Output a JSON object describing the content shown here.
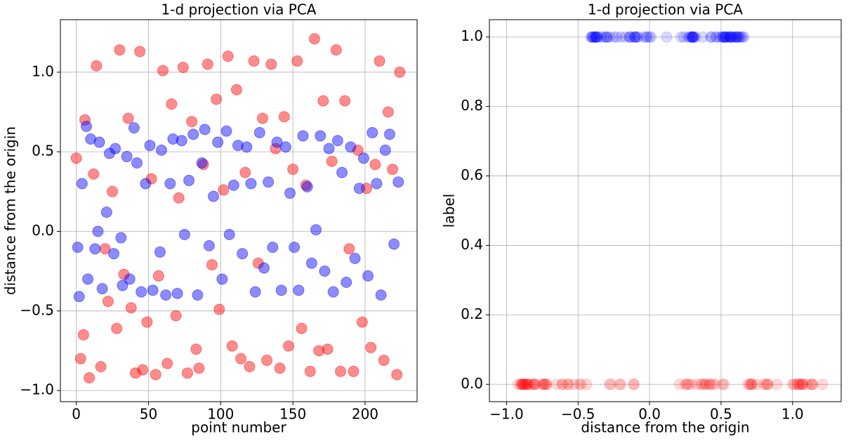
{
  "chart_data": [
    {
      "type": "scatter",
      "title": "1-d projection via PCA",
      "xlabel": "point number",
      "ylabel": "distance from the origin",
      "xlim": [
        -11,
        236
      ],
      "ylim": [
        -1.07,
        1.33
      ],
      "xticks": [
        0,
        50,
        100,
        150,
        200
      ],
      "yticks": [
        {
          "value": -1.0,
          "label": "−1.0"
        },
        {
          "value": -0.5,
          "label": "−0.5"
        },
        {
          "value": 0.0,
          "label": "0.0"
        },
        {
          "value": 0.5,
          "label": "0.5"
        },
        {
          "value": 1.0,
          "label": "1.0"
        }
      ],
      "grid": true,
      "alpha": 0.45,
      "series": [
        {
          "color": "#ff0000",
          "x": [
            0,
            3,
            5,
            6,
            9,
            12,
            14,
            17,
            20,
            22,
            25,
            28,
            30,
            33,
            36,
            38,
            41,
            44,
            46,
            49,
            52,
            55,
            57,
            60,
            63,
            66,
            69,
            71,
            74,
            77,
            80,
            83,
            85,
            88,
            91,
            94,
            97,
            99,
            102,
            105,
            108,
            111,
            114,
            117,
            120,
            123,
            126,
            129,
            132,
            135,
            138,
            141,
            144,
            147,
            150,
            153,
            156,
            159,
            162,
            165,
            168,
            171,
            174,
            177,
            180,
            183,
            186,
            189,
            192,
            195,
            198,
            201,
            204,
            207,
            210,
            213,
            216,
            219,
            222,
            224
          ],
          "y": [
            0.46,
            -0.8,
            -0.65,
            0.7,
            -0.92,
            0.36,
            1.04,
            -0.85,
            -0.11,
            -0.44,
            0.25,
            -0.61,
            1.14,
            -0.27,
            0.71,
            -0.48,
            -0.89,
            1.13,
            -0.87,
            -0.57,
            0.33,
            -0.9,
            -0.28,
            1.01,
            -0.83,
            0.8,
            -0.53,
            0.21,
            1.03,
            -0.89,
            0.69,
            -0.74,
            -0.86,
            0.42,
            1.05,
            -0.21,
            0.83,
            -0.49,
            0.26,
            1.1,
            -0.72,
            0.89,
            -0.8,
            0.37,
            -0.85,
            1.07,
            -0.2,
            0.71,
            -0.81,
            1.05,
            0.52,
            -0.86,
            0.72,
            -0.72,
            0.39,
            1.07,
            -0.61,
            0.29,
            -0.88,
            1.21,
            -0.75,
            0.82,
            -0.74,
            0.44,
            1.14,
            -0.88,
            0.82,
            -0.11,
            -0.88,
            0.51,
            -0.57,
            0.27,
            -0.73,
            0.42,
            1.07,
            -0.81,
            0.75,
            0.39,
            -0.9,
            1.0
          ]
        },
        {
          "color": "#0000ff",
          "x": [
            1,
            2,
            4,
            7,
            8,
            10,
            13,
            15,
            16,
            18,
            21,
            23,
            26,
            27,
            31,
            32,
            35,
            37,
            40,
            42,
            45,
            48,
            51,
            53,
            58,
            59,
            62,
            65,
            67,
            70,
            73,
            75,
            78,
            81,
            84,
            87,
            89,
            92,
            95,
            98,
            101,
            104,
            106,
            109,
            112,
            115,
            118,
            121,
            124,
            127,
            130,
            133,
            136,
            139,
            142,
            145,
            148,
            151,
            154,
            157,
            160,
            163,
            166,
            169,
            172,
            175,
            178,
            181,
            184,
            187,
            190,
            193,
            196,
            199,
            202,
            205,
            208,
            211,
            214,
            217,
            220,
            223
          ],
          "y": [
            -0.1,
            -0.41,
            0.3,
            0.66,
            -0.3,
            0.58,
            -0.11,
            0.0,
            0.56,
            -0.36,
            0.12,
            0.49,
            -0.14,
            0.52,
            -0.04,
            -0.34,
            0.47,
            -0.3,
            0.65,
            0.43,
            -0.38,
            0.3,
            0.54,
            -0.37,
            -0.13,
            0.51,
            -0.4,
            0.3,
            0.58,
            -0.39,
            0.57,
            -0.02,
            0.32,
            0.61,
            -0.4,
            0.43,
            0.64,
            -0.09,
            0.22,
            0.56,
            -0.3,
            0.63,
            -0.02,
            0.29,
            0.54,
            -0.14,
            0.53,
            0.3,
            -0.38,
            0.62,
            -0.23,
            0.31,
            -0.1,
            0.56,
            -0.37,
            0.53,
            0.24,
            -0.1,
            -0.37,
            0.6,
            0.28,
            -0.2,
            0.01,
            0.6,
            -0.25,
            0.52,
            -0.38,
            0.57,
            0.37,
            -0.32,
            0.53,
            -0.17,
            0.27,
            0.46,
            -0.28,
            0.62,
            0.3,
            -0.4,
            0.51,
            0.61,
            -0.08,
            0.31
          ]
        }
      ]
    },
    {
      "type": "scatter",
      "title": "1-d projection via PCA",
      "xlabel": "distance from the origin",
      "ylabel": "label",
      "xlim": [
        -1.12,
        1.34
      ],
      "ylim": [
        -0.05,
        1.05
      ],
      "xticks": [
        {
          "value": -1.0,
          "label": "−1.0"
        },
        {
          "value": -0.5,
          "label": "−0.5"
        },
        {
          "value": 0.0,
          "label": "0.0"
        },
        {
          "value": 0.5,
          "label": "0.5"
        },
        {
          "value": 1.0,
          "label": "1.0"
        }
      ],
      "yticks": [
        {
          "value": 0.0,
          "label": "0.0"
        },
        {
          "value": 0.2,
          "label": "0.2"
        },
        {
          "value": 0.4,
          "label": "0.4"
        },
        {
          "value": 0.6,
          "label": "0.6"
        },
        {
          "value": 0.8,
          "label": "0.8"
        },
        {
          "value": 1.0,
          "label": "1.0"
        }
      ],
      "grid": true,
      "alpha": 0.15,
      "series": [
        {
          "color": "#ff0000",
          "y": 0
        },
        {
          "color": "#0000ff",
          "y": 1
        }
      ]
    }
  ]
}
